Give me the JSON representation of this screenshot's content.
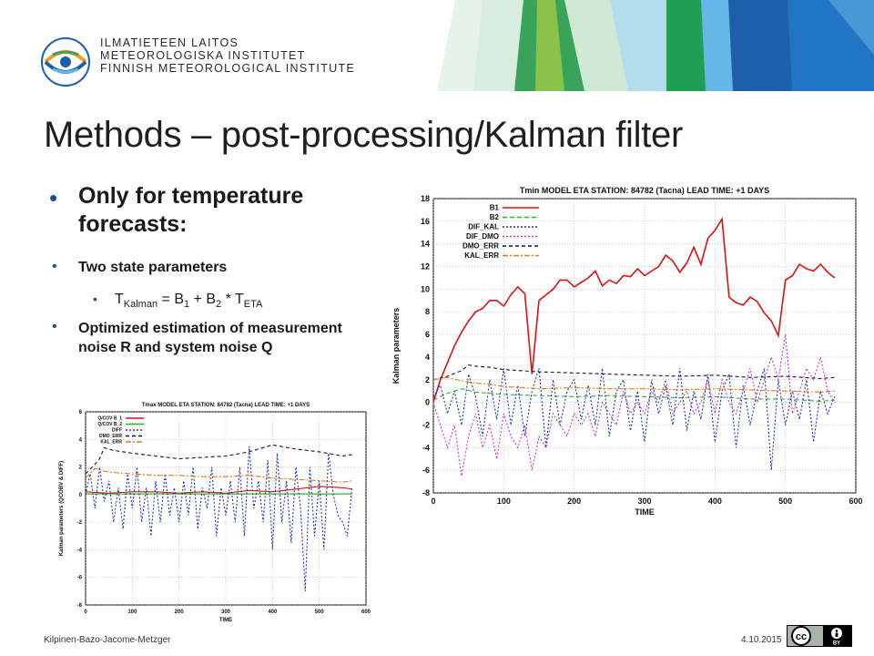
{
  "brand": {
    "logo_lines": [
      "ILMATIETEEN LAITOS",
      "METEOROLOGISKA INSTITUTET",
      "FINNISH METEOROLOGICAL INSTITUTE"
    ]
  },
  "slide": {
    "title": "Methods – post-processing/Kalman filter",
    "bullet_char": "•",
    "bullet1": "Only for temperature forecasts:",
    "bullet2": "Two state parameters",
    "bullet4": "Optimized estimation of measurement noise R and system noise Q",
    "formula": {
      "t": "T",
      "t_sub": "Kalman",
      "eq": " = B",
      "b1_sub": "1",
      "plus": " + B",
      "b2_sub": "2",
      "times": " * T",
      "eta_sub": "ETA"
    }
  },
  "footer": {
    "authors": "Kilpinen-Bazo-Jacome-Metzger",
    "date": "4.10.2015",
    "cc": "cc",
    "by": "BY"
  },
  "colors": {
    "accent_bullet": "#1a4e8a",
    "B1": "#dd1111",
    "B2": "#22bb22",
    "DIF_KAL": "#2233aa",
    "DIF_DMO": "#cc33cc",
    "DMO_ERR": "#111155",
    "KAL_ERR": "#e07a20"
  },
  "chart_data": [
    {
      "id": "big",
      "type": "line",
      "title": "Tmin MODEL ETA STATION: 84782 (Tacna) LEAD TIME: +1 DAYS",
      "xlabel": "TIME",
      "ylabel": "Kalman parameters",
      "xlim": [
        0,
        600
      ],
      "ylim": [
        -8,
        18
      ],
      "xticks": [
        0,
        100,
        200,
        300,
        400,
        500,
        600
      ],
      "yticks": [
        -8,
        -6,
        -4,
        -2,
        0,
        2,
        4,
        6,
        8,
        10,
        12,
        14,
        16,
        18
      ],
      "grid": true,
      "legend": "top-left",
      "series": [
        {
          "name": "B1",
          "x": [
            0,
            10,
            20,
            30,
            40,
            50,
            60,
            70,
            80,
            90,
            100,
            110,
            120,
            130,
            140,
            150,
            160,
            170,
            180,
            190,
            200,
            210,
            220,
            230,
            240,
            250,
            260,
            270,
            280,
            290,
            300,
            310,
            320,
            330,
            340,
            350,
            360,
            370,
            380,
            390,
            400,
            410,
            420,
            430,
            440,
            450,
            460,
            470,
            480,
            490,
            500,
            510,
            520,
            530,
            540,
            550,
            560,
            570
          ],
          "y": [
            0,
            2,
            3.5,
            5,
            6.2,
            7.2,
            8,
            8.3,
            9,
            9,
            8.5,
            9.5,
            10.2,
            9.6,
            2.5,
            9,
            9.5,
            10,
            10.8,
            10.8,
            10.2,
            10.6,
            11,
            11.6,
            10.3,
            10.8,
            10.5,
            11.2,
            11.1,
            11.8,
            11.2,
            11.6,
            12,
            13,
            12.5,
            11.5,
            12.3,
            13.7,
            12.2,
            14.5,
            15.2,
            16.2,
            9.3,
            8.8,
            8.6,
            9.3,
            8.9,
            7.9,
            7.2,
            5.9,
            10.8,
            11.2,
            12.2,
            11.8,
            11.6,
            12.2,
            11.5,
            11
          ]
        },
        {
          "name": "B2",
          "x": [
            0,
            20,
            40,
            60,
            80,
            100,
            150,
            200,
            250,
            300,
            350,
            400,
            450,
            500,
            550,
            570
          ],
          "y": [
            0.2,
            0.8,
            1.2,
            0.9,
            0.8,
            0.7,
            0.6,
            0.5,
            0.6,
            0.5,
            0.4,
            0.5,
            0.3,
            0.3,
            0.1,
            0.2
          ]
        },
        {
          "name": "DIF_KAL",
          "x": [
            0,
            10,
            20,
            30,
            40,
            50,
            60,
            70,
            80,
            90,
            100,
            110,
            120,
            130,
            140,
            150,
            160,
            170,
            180,
            190,
            200,
            210,
            220,
            230,
            240,
            250,
            260,
            270,
            280,
            290,
            300,
            310,
            320,
            330,
            340,
            350,
            360,
            370,
            380,
            390,
            400,
            410,
            420,
            430,
            440,
            450,
            460,
            470,
            480,
            490,
            500,
            510,
            520,
            530,
            540,
            550,
            560,
            570
          ],
          "y": [
            0.5,
            1.5,
            -1,
            1,
            -2,
            2.5,
            0.5,
            -3,
            2,
            -1.5,
            3,
            -2,
            1.5,
            -3,
            1,
            3,
            -4,
            2,
            -2,
            1,
            2,
            -1.5,
            1.5,
            -2,
            3,
            -3,
            1,
            2,
            -2.5,
            1,
            -3.5,
            2,
            -1,
            1.5,
            -2,
            3,
            -2.5,
            1,
            -1.5,
            2.5,
            -3.5,
            1,
            2.5,
            -4,
            1.5,
            -2,
            1,
            3,
            -6,
            2,
            -2,
            1,
            -1.5,
            2,
            -3.5,
            1,
            -1,
            0.5
          ]
        },
        {
          "name": "DIF_DMO",
          "x": [
            0,
            10,
            20,
            30,
            40,
            50,
            60,
            70,
            80,
            90,
            100,
            110,
            120,
            130,
            140,
            150,
            160,
            170,
            180,
            190,
            200,
            210,
            220,
            230,
            240,
            250,
            260,
            270,
            280,
            290,
            300,
            310,
            320,
            330,
            340,
            350,
            360,
            370,
            380,
            390,
            400,
            410,
            420,
            430,
            440,
            450,
            460,
            470,
            480,
            490,
            500,
            510,
            520,
            530,
            540,
            550,
            560,
            570
          ],
          "y": [
            0,
            -2,
            -4,
            -2,
            -6.5,
            -3,
            -1,
            -4,
            -2,
            -5,
            -1,
            -3,
            -4,
            -2,
            -6,
            -3,
            -4,
            -1,
            -2,
            -3,
            -1,
            -2,
            -1,
            -3,
            0,
            -1,
            -2,
            1,
            -1,
            0,
            -1,
            1,
            0,
            2,
            -1,
            0,
            1,
            -1,
            0,
            2,
            -1,
            2,
            0,
            -1,
            1,
            3,
            0,
            2,
            4,
            2,
            6,
            -1,
            1,
            3,
            2,
            4,
            1,
            0
          ]
        },
        {
          "name": "DMO_ERR",
          "x": [
            0,
            20,
            40,
            50,
            60,
            80,
            100,
            150,
            200,
            250,
            300,
            350,
            400,
            450,
            500,
            550,
            570
          ],
          "y": [
            2,
            2.3,
            2.8,
            3.3,
            3.2,
            3.1,
            2.9,
            2.7,
            2.6,
            2.5,
            2.4,
            2.3,
            2.4,
            2.2,
            2.3,
            2.1,
            2.2
          ]
        },
        {
          "name": "KAL_ERR",
          "x": [
            0,
            20,
            40,
            60,
            80,
            100,
            150,
            200,
            250,
            300,
            350,
            400,
            450,
            500,
            550,
            570
          ],
          "y": [
            2,
            2.2,
            1.9,
            1.7,
            1.6,
            1.4,
            1.2,
            1.3,
            1.2,
            1.2,
            1.1,
            1.2,
            1.1,
            1,
            0.9,
            1
          ]
        }
      ]
    },
    {
      "id": "small",
      "type": "line",
      "title": "Tmax MODEL ETA STATION: 84782 (Tacna) LEAD TIME: +1 DAYS",
      "xlabel": "TIME",
      "ylabel": "Kalman parameters (QCOBV & DIFF)",
      "xlim": [
        0,
        600
      ],
      "ylim": [
        -8,
        6
      ],
      "xticks": [
        0,
        100,
        200,
        300,
        400,
        500,
        600
      ],
      "yticks": [
        -8,
        -6,
        -4,
        -2,
        0,
        2,
        4,
        6
      ],
      "grid": true,
      "legend": "top-left",
      "series": [
        {
          "name": "Q/COV B_1",
          "x": [
            0,
            50,
            100,
            150,
            200,
            250,
            300,
            350,
            400,
            450,
            500,
            550,
            570
          ],
          "y": [
            0.2,
            0.1,
            0.2,
            0.2,
            0.1,
            0.2,
            0.1,
            0.3,
            0.2,
            0.4,
            0.6,
            0.5,
            0.4
          ]
        },
        {
          "name": "Q/COV B_2",
          "x": [
            0,
            100,
            200,
            300,
            400,
            500,
            570
          ],
          "y": [
            0.05,
            0.05,
            0.05,
            0.05,
            0.05,
            0.05,
            0.05
          ]
        },
        {
          "name": "DIFF",
          "x": [
            0,
            10,
            20,
            30,
            40,
            50,
            60,
            70,
            80,
            90,
            100,
            110,
            120,
            130,
            140,
            150,
            160,
            170,
            180,
            190,
            200,
            210,
            220,
            230,
            240,
            250,
            260,
            270,
            280,
            290,
            300,
            310,
            320,
            330,
            340,
            350,
            360,
            370,
            380,
            390,
            400,
            410,
            420,
            430,
            440,
            450,
            460,
            470,
            480,
            490,
            500,
            510,
            520,
            530,
            540,
            550,
            560,
            570
          ],
          "y": [
            0,
            1.5,
            -1,
            2,
            -0.5,
            1,
            -2,
            0.5,
            -2.5,
            1.5,
            -1,
            2,
            -2,
            0.5,
            -3,
            1,
            -2,
            1.5,
            -1.5,
            0.5,
            -2,
            1,
            -1.5,
            2,
            -2.5,
            0.5,
            -1,
            2,
            -3,
            0.5,
            -1.5,
            1,
            -2,
            2,
            -3,
            3.5,
            -1,
            1,
            -2,
            2.5,
            -4,
            3,
            -2,
            1,
            -3.5,
            2,
            -1,
            -7,
            2,
            -3,
            1,
            -4,
            3,
            0,
            -1.5,
            -2,
            -3,
            0.5
          ]
        },
        {
          "name": "DMO_ERR",
          "x": [
            0,
            20,
            30,
            40,
            50,
            60,
            80,
            100,
            150,
            200,
            250,
            300,
            350,
            400,
            450,
            500,
            550,
            570
          ],
          "y": [
            1.5,
            2.2,
            2.6,
            3.4,
            3.3,
            3.2,
            3.1,
            3,
            2.8,
            2.6,
            2.7,
            2.8,
            3.1,
            3.6,
            3.3,
            3.1,
            2.8,
            2.9
          ]
        },
        {
          "name": "KAL_ERR",
          "x": [
            0,
            20,
            40,
            60,
            100,
            150,
            200,
            250,
            300,
            350,
            400,
            450,
            500,
            550,
            570
          ],
          "y": [
            1.2,
            1.9,
            1.7,
            1.6,
            1.5,
            1.4,
            1.4,
            1.3,
            1.3,
            1.4,
            1.2,
            1.1,
            1.0,
            0.9,
            1.0
          ]
        }
      ]
    }
  ]
}
